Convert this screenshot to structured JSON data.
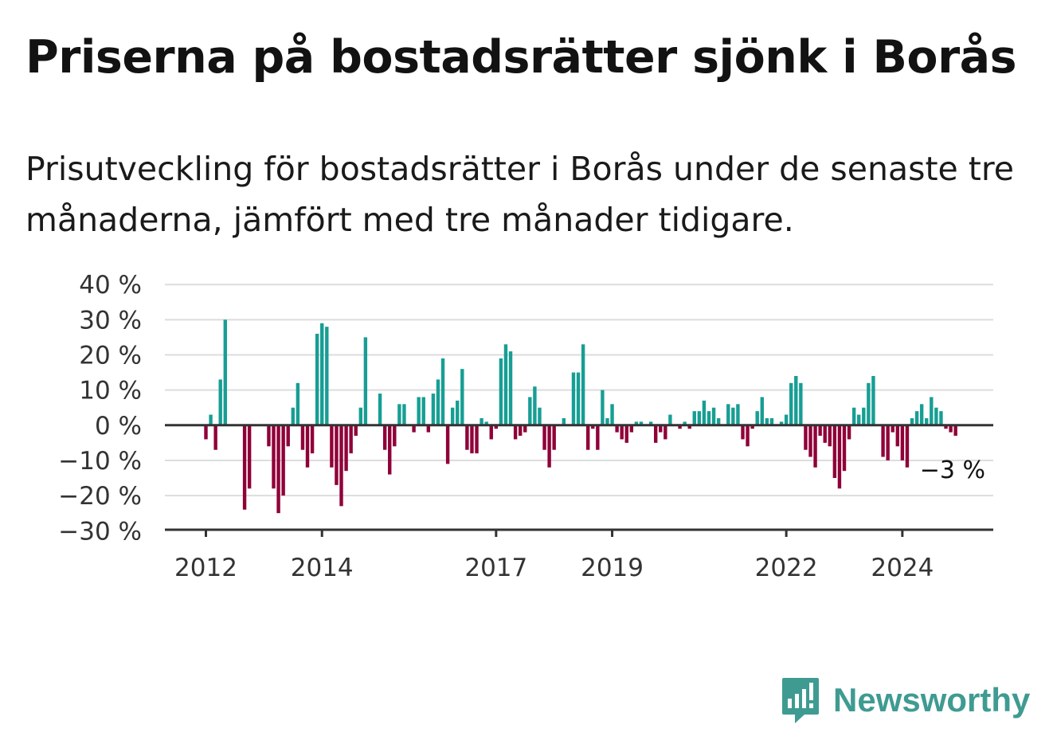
{
  "header": {
    "title": "Priserna på bostadsrätter sjönk i Borås",
    "subtitle": "Prisutveckling för bostadsrätter i Borås under de senaste tre månaderna, jämfört med tre månader tidigare."
  },
  "brand": {
    "name": "Newsworthy",
    "icon": "newsworthy-logo-icon",
    "color": "#3f9b92"
  },
  "chart_data": {
    "type": "bar",
    "title": "Priserna på bostadsrätter sjönk i Borås",
    "subtitle": "Prisutveckling för bostadsrätter i Borås under de senaste tre månaderna, jämfört med tre månader tidigare.",
    "x_unit": "month",
    "x_start": "2012-01",
    "x_ticks": [
      {
        "label": "2012",
        "month_index": 0
      },
      {
        "label": "2014",
        "month_index": 24
      },
      {
        "label": "2017",
        "month_index": 60
      },
      {
        "label": "2019",
        "month_index": 84
      },
      {
        "label": "2022",
        "month_index": 120
      },
      {
        "label": "2024",
        "month_index": 144
      }
    ],
    "y_ticks": [
      {
        "value": 40,
        "label": "40 %"
      },
      {
        "value": 30,
        "label": "30 %"
      },
      {
        "value": 20,
        "label": "20 %"
      },
      {
        "value": 10,
        "label": "10 %"
      },
      {
        "value": 0,
        "label": "0 %"
      },
      {
        "value": -10,
        "label": "−10 %"
      },
      {
        "value": -20,
        "label": "−20 %"
      },
      {
        "value": -30,
        "label": "−30 %"
      }
    ],
    "ylim": [
      -30,
      40
    ],
    "grid": true,
    "positive_color": "#179e94",
    "negative_color": "#8f0038",
    "last_value_label": "−3 %",
    "values": [
      -4,
      3,
      -7,
      13,
      30,
      null,
      null,
      null,
      -24,
      -18,
      null,
      null,
      null,
      -6,
      -18,
      -25,
      -20,
      -6,
      5,
      12,
      -7,
      -12,
      -8,
      26,
      29,
      28,
      -12,
      -17,
      -23,
      -13,
      -8,
      -3,
      5,
      25,
      null,
      null,
      9,
      -7,
      -14,
      -6,
      6,
      6,
      null,
      -2,
      8,
      8,
      -2,
      9,
      13,
      19,
      -11,
      5,
      7,
      16,
      -7,
      -8,
      -8,
      2,
      1,
      -4,
      -1,
      19,
      23,
      21,
      -4,
      -3,
      -2,
      8,
      11,
      5,
      -7,
      -12,
      -7,
      null,
      2,
      null,
      15,
      15,
      23,
      -7,
      -1,
      -7,
      10,
      2,
      6,
      -2,
      -4,
      -5,
      -2,
      1,
      1,
      0,
      1,
      -5,
      -2,
      -4,
      3,
      null,
      -1,
      1,
      -1,
      4,
      4,
      7,
      4,
      5,
      2,
      null,
      6,
      5,
      6,
      -4,
      -6,
      -1,
      4,
      8,
      2,
      2,
      null,
      1,
      3,
      12,
      14,
      12,
      -7,
      -9,
      -12,
      -3,
      -5,
      -6,
      -15,
      -18,
      -13,
      -4,
      5,
      3,
      5,
      12,
      14,
      null,
      -9,
      -10,
      -2,
      -6,
      -10,
      -12,
      2,
      4,
      6,
      2,
      8,
      5,
      4,
      -1,
      -2,
      -3
    ]
  }
}
